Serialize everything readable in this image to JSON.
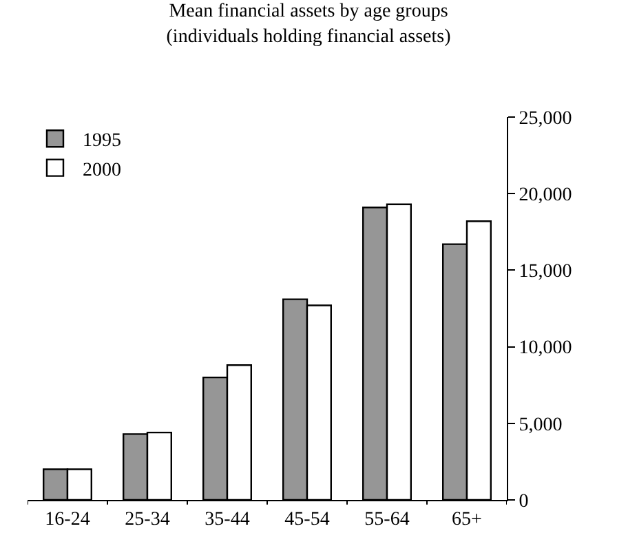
{
  "chart_data": {
    "type": "bar",
    "title": "Mean financial assets by age groups\n(individuals holding financial assets)",
    "categories": [
      "16-24",
      "25-34",
      "35-44",
      "45-54",
      "55-64",
      "65+"
    ],
    "series": [
      {
        "name": "1995",
        "color": "#969696",
        "values": [
          2000,
          4300,
          8000,
          13100,
          19100,
          16700
        ]
      },
      {
        "name": "2000",
        "color": "#ffffff",
        "values": [
          2000,
          4400,
          8800,
          12700,
          19300,
          18200
        ]
      }
    ],
    "ylim": [
      0,
      25000
    ],
    "yticks": [
      {
        "value": 0,
        "label": "0"
      },
      {
        "value": 5000,
        "label": "5,000"
      },
      {
        "value": 10000,
        "label": "10,000"
      },
      {
        "value": 15000,
        "label": "15,000"
      },
      {
        "value": 20000,
        "label": "20,000"
      },
      {
        "value": 25000,
        "label": "25,000"
      }
    ],
    "legend": "top left"
  }
}
